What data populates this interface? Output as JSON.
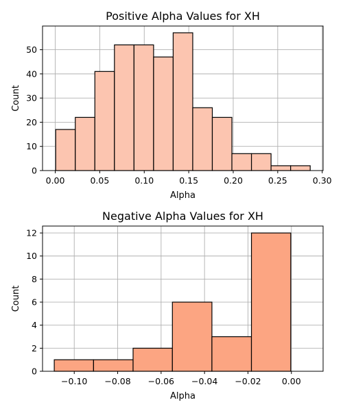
{
  "chart_data": [
    {
      "type": "bar",
      "title": "Positive Alpha Values for XH",
      "xlabel": "Alpha",
      "ylabel": "Count",
      "xlim": [
        -0.0143,
        0.301
      ],
      "ylim": [
        0,
        59.8
      ],
      "xticks": [
        0.0,
        0.05,
        0.1,
        0.15,
        0.2,
        0.25,
        0.3
      ],
      "xtick_labels": [
        "0.00",
        "0.05",
        "0.10",
        "0.15",
        "0.20",
        "0.25",
        "0.30"
      ],
      "yticks": [
        0,
        10,
        20,
        30,
        40,
        50
      ],
      "ytick_labels": [
        "0",
        "10",
        "20",
        "30",
        "40",
        "50"
      ],
      "grid": true,
      "bar_color": "#fcc5b0",
      "bins": [
        {
          "x0": 0.0005,
          "x1": 0.0225,
          "count": 17
        },
        {
          "x0": 0.0225,
          "x1": 0.0445,
          "count": 22
        },
        {
          "x0": 0.0445,
          "x1": 0.0665,
          "count": 41
        },
        {
          "x0": 0.0665,
          "x1": 0.0885,
          "count": 52
        },
        {
          "x0": 0.0885,
          "x1": 0.1105,
          "count": 52
        },
        {
          "x0": 0.1105,
          "x1": 0.1325,
          "count": 47
        },
        {
          "x0": 0.1325,
          "x1": 0.1545,
          "count": 57
        },
        {
          "x0": 0.1545,
          "x1": 0.1765,
          "count": 26
        },
        {
          "x0": 0.1765,
          "x1": 0.1985,
          "count": 22
        },
        {
          "x0": 0.1985,
          "x1": 0.2205,
          "count": 7
        },
        {
          "x0": 0.2205,
          "x1": 0.2425,
          "count": 7
        },
        {
          "x0": 0.2425,
          "x1": 0.2645,
          "count": 2
        },
        {
          "x0": 0.2645,
          "x1": 0.2865,
          "count": 2
        }
      ]
    },
    {
      "type": "bar",
      "title": "Negative Alpha Values for XH",
      "xlabel": "Alpha",
      "ylabel": "Count",
      "xlim": [
        -0.1146,
        0.0146
      ],
      "ylim": [
        0,
        12.6
      ],
      "xticks": [
        -0.1,
        -0.08,
        -0.06,
        -0.04,
        -0.02,
        0.0
      ],
      "xtick_labels": [
        "−0.10",
        "−0.08",
        "−0.06",
        "−0.04",
        "−0.02",
        "0.00"
      ],
      "yticks": [
        0,
        2,
        4,
        6,
        8,
        10,
        12
      ],
      "ytick_labels": [
        "0",
        "2",
        "4",
        "6",
        "8",
        "10",
        "12"
      ],
      "grid": true,
      "bar_color": "#fca582",
      "bins": [
        {
          "x0": -0.1092,
          "x1": -0.0911,
          "count": 1
        },
        {
          "x0": -0.0911,
          "x1": -0.0729,
          "count": 1
        },
        {
          "x0": -0.0729,
          "x1": -0.0548,
          "count": 2
        },
        {
          "x0": -0.0548,
          "x1": -0.0366,
          "count": 6
        },
        {
          "x0": -0.0366,
          "x1": -0.0184,
          "count": 3
        },
        {
          "x0": -0.0184,
          "x1": -0.0003,
          "count": 12
        }
      ]
    }
  ]
}
